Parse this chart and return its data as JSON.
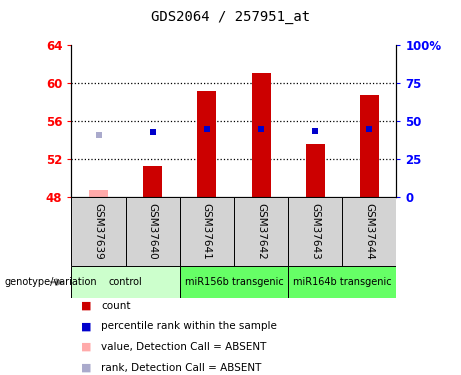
{
  "title": "GDS2064 / 257951_at",
  "samples": [
    "GSM37639",
    "GSM37640",
    "GSM37641",
    "GSM37642",
    "GSM37643",
    "GSM37644"
  ],
  "groups": [
    {
      "label": "control",
      "color": "#ccffcc",
      "start": 0,
      "end": 2
    },
    {
      "label": "miR156b transgenic",
      "color": "#66ff66",
      "start": 2,
      "end": 4
    },
    {
      "label": "miR164b transgenic",
      "color": "#66ff66",
      "start": 4,
      "end": 6
    }
  ],
  "count_values": [
    48.7,
    51.3,
    59.2,
    61.0,
    53.6,
    58.7
  ],
  "count_absent": [
    true,
    false,
    false,
    false,
    false,
    false
  ],
  "percentile_values": [
    54.5,
    54.8,
    55.1,
    55.2,
    54.9,
    55.1
  ],
  "percentile_absent": [
    true,
    false,
    false,
    false,
    false,
    false
  ],
  "ymin": 48,
  "ymax": 64,
  "yticks_left": [
    48,
    52,
    56,
    60,
    64
  ],
  "yticks_right_labels": [
    "0",
    "25",
    "50",
    "75",
    "100%"
  ],
  "yticks_right_vals": [
    0,
    25,
    50,
    75,
    100
  ],
  "bar_color": "#cc0000",
  "bar_absent_color": "#ffaaaa",
  "rank_color": "#0000cc",
  "rank_absent_color": "#aaaacc",
  "bar_width": 0.35,
  "background_color": "#ffffff",
  "legend_items": [
    {
      "color": "#cc0000",
      "label": "count"
    },
    {
      "color": "#0000cc",
      "label": "percentile rank within the sample"
    },
    {
      "color": "#ffaaaa",
      "label": "value, Detection Call = ABSENT"
    },
    {
      "color": "#aaaacc",
      "label": "rank, Detection Call = ABSENT"
    }
  ]
}
